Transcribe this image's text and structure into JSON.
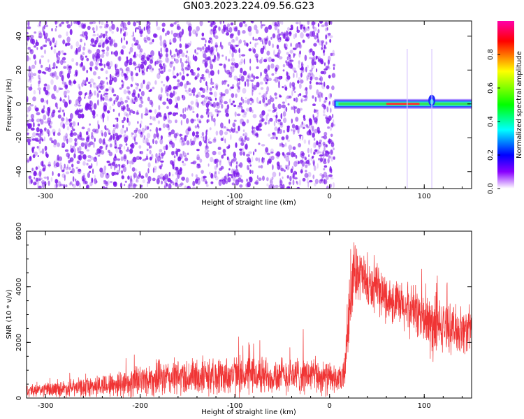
{
  "title": "GN03.2023.224.09.56.G23",
  "colors": {
    "snr_line": "#f03434",
    "speckle": "#7a16ea",
    "colorbar": [
      "#ff00ff",
      "#ff0000",
      "#ffff00",
      "#00ff00",
      "#00ffff",
      "#0000ff",
      "#8800ff",
      "#ffffff"
    ]
  },
  "chart_data": [
    {
      "type": "heatmap",
      "xlabel": "Height of straight line (km)",
      "ylabel": "Frequency (Hz)",
      "xlim": [
        -320,
        150
      ],
      "ylim": [
        -50,
        49
      ],
      "x_ticks": [
        -300,
        -200,
        -100,
        0,
        100
      ],
      "y_ticks": [
        -40,
        -20,
        0,
        20,
        40
      ],
      "colorbar": {
        "label": "Normalized spectral amplitude",
        "ticks": [
          0.0,
          0.2,
          0.4,
          0.6,
          0.8
        ],
        "tick_labels": [
          "0.0",
          "0.2",
          "0.4",
          "0.6",
          "0.8"
        ],
        "range": [
          0,
          1
        ]
      },
      "features": {
        "noise_region_x": [
          -320,
          5
        ],
        "signal_band_x": [
          5,
          150
        ],
        "signal_band_frequency": 0,
        "peak_amplitude_x": [
          60,
          95
        ]
      }
    },
    {
      "type": "line",
      "xlabel": "Height of straight line (km)",
      "ylabel": "SNR (10 * v/v)",
      "xlim": [
        -320,
        150
      ],
      "ylim": [
        0,
        6000
      ],
      "x_ticks": [
        -300,
        -200,
        -100,
        0,
        100
      ],
      "y_ticks": [
        0,
        2000,
        4000,
        6000
      ],
      "series": [
        {
          "envelope_x": [
            -320,
            -300,
            -260,
            -240,
            -220,
            -200,
            -180,
            -150,
            -120,
            -100,
            -80,
            -60,
            -40,
            -20,
            0,
            10,
            15,
            20,
            25,
            30,
            40,
            50,
            60,
            70,
            80,
            90,
            100,
            110,
            120,
            130,
            140,
            150
          ],
          "envelope_mid": [
            250,
            300,
            380,
            450,
            520,
            650,
            700,
            750,
            780,
            820,
            820,
            800,
            820,
            820,
            700,
            650,
            700,
            2800,
            4500,
            4600,
            4000,
            3900,
            3600,
            3400,
            3200,
            3200,
            2800,
            2500,
            2600,
            2500,
            2400,
            2500
          ],
          "envelope_spread": [
            250,
            300,
            400,
            500,
            600,
            700,
            750,
            800,
            800,
            850,
            850,
            800,
            800,
            800,
            700,
            500,
            800,
            1500,
            1300,
            1200,
            1000,
            1000,
            1000,
            1000,
            1100,
            1100,
            1200,
            1600,
            1000,
            1000,
            1000,
            1000
          ]
        }
      ]
    }
  ]
}
